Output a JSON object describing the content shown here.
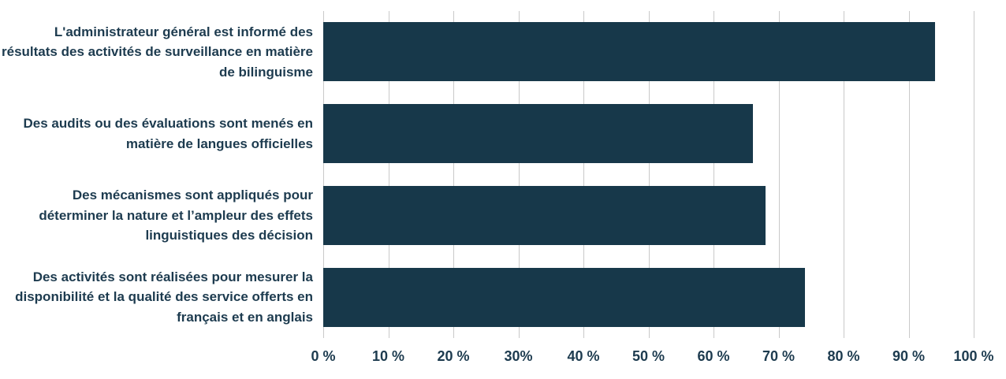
{
  "chart_data": {
    "type": "bar",
    "orientation": "horizontal",
    "title": "",
    "xlabel": "",
    "ylabel": "",
    "unit": "%",
    "xlim": [
      0,
      100
    ],
    "grid": true,
    "legend": "none",
    "categories": [
      "L'administrateur général est informé des résultats des activités de surveillance en matière de bilinguisme",
      "Des audits ou des évaluations sont menés en matière de langues officielles",
      "Des mécanismes sont appliqués pour déterminer la nature et l’ampleur des effets linguistiques des décision",
      "Des activités sont réalisées pour mesurer la disponibilité et la qualité des service offerts en français et en anglais"
    ],
    "values": [
      94,
      66,
      68,
      74
    ],
    "x_ticks": [
      0,
      10,
      20,
      30,
      40,
      50,
      60,
      70,
      80,
      90,
      100
    ],
    "x_tick_labels": [
      "0 %",
      "10 %",
      "20 %",
      "30%",
      "40 %",
      "50 %",
      "60 %",
      "70 %",
      "80 %",
      "90 %",
      "100 %"
    ],
    "colors": {
      "bar": "#17384A",
      "label": "#1D3B4F",
      "gridline": "#C9C9C9"
    }
  }
}
